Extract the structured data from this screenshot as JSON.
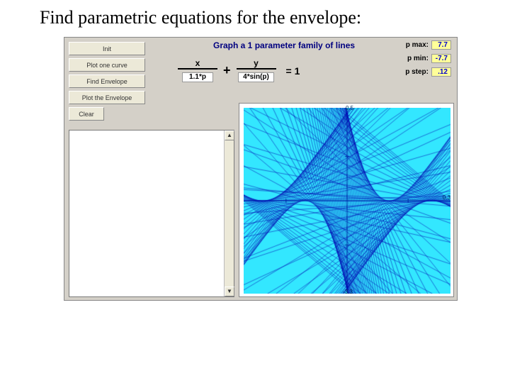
{
  "heading": "Find parametric equations for the envelope:",
  "app": {
    "title": "Graph a 1 parameter family of lines",
    "buttons": [
      {
        "id": "init",
        "label": "Init"
      },
      {
        "id": "plot1",
        "label": "Plot one curve"
      },
      {
        "id": "find",
        "label": "Find Envelope"
      },
      {
        "id": "plote",
        "label": "Plot the Envelope"
      },
      {
        "id": "clear",
        "label": "Clear"
      }
    ],
    "equation": {
      "x_num": "x",
      "x_den": "1.1*p",
      "plus": "+",
      "y_num": "y",
      "y_den": "4*sin(p)",
      "eq": "= 1"
    },
    "params": {
      "pmax_label": "p max:",
      "pmax": "7.7",
      "pmin_label": "p min:",
      "pmin": "-7.7",
      "pstep_label": "p step:",
      "pstep": ".12"
    },
    "plot": {
      "background": "#33e7ff",
      "axis_color": "#0040a0",
      "line_color": "#0000b0",
      "grid_color": "#0080c0",
      "xlim": [
        -8.47,
        8.47
      ],
      "ylim": [
        -4.2,
        4.2
      ],
      "p_min": -7.7,
      "p_max": 7.7,
      "p_step": 0.12,
      "a_expr": "1.1*p",
      "b_expr": "4*sin(p)",
      "axis_ticks_x": [
        -5,
        5
      ],
      "axis_ticks_y": [
        -2,
        2
      ],
      "axis_label_top": "0.5",
      "axis_label_right": "0.3",
      "axis_label_bottom": "-3.3"
    }
  },
  "colors": {
    "panel": "#d4d0c8",
    "button": "#ece9d8",
    "navy": "#000080"
  }
}
